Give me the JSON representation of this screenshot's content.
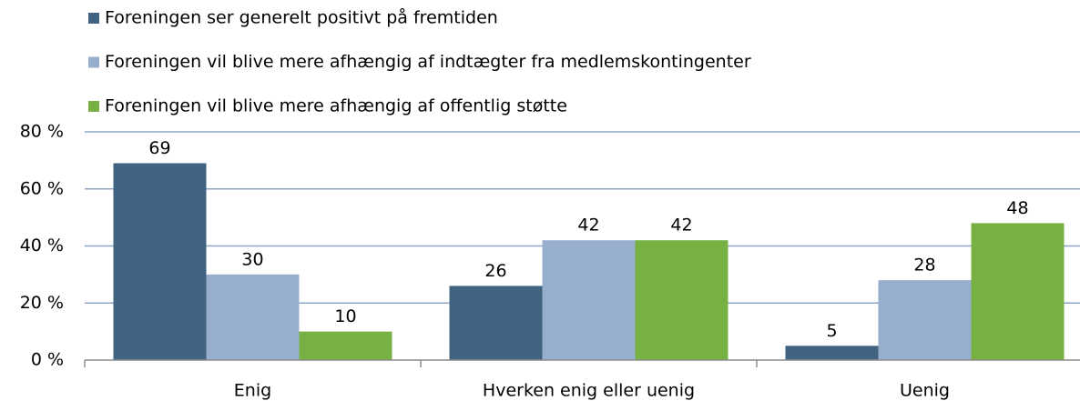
{
  "chart_data": {
    "type": "bar",
    "categories": [
      "Enig",
      "Hverken enig eller uenig",
      "Uenig"
    ],
    "series": [
      {
        "name": "Foreningen ser generelt positivt på fremtiden",
        "color": "#3f6380",
        "values": [
          69,
          26,
          5
        ]
      },
      {
        "name": "Foreningen vil blive mere afhængig af indtægter fra medlemskontingenter",
        "color": "#97afcd",
        "values": [
          30,
          42,
          28
        ]
      },
      {
        "name": "Foreningen vil blive mere afhængig af offentlig støtte",
        "color": "#77b043",
        "values": [
          10,
          42,
          48
        ]
      }
    ],
    "ylim": [
      0,
      80
    ],
    "yticks": [
      {
        "value": 0,
        "label": "0 %"
      },
      {
        "value": 20,
        "label": "20 %"
      },
      {
        "value": 40,
        "label": "40 %"
      },
      {
        "value": 60,
        "label": "60 %"
      },
      {
        "value": 80,
        "label": "80 %"
      }
    ],
    "grid": true
  }
}
